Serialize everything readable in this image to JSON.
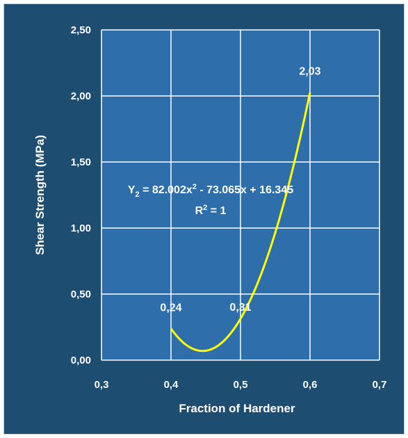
{
  "colors": {
    "background": "#1e4d72",
    "plot_area": "#2e6eaa",
    "grid": "#ffffff",
    "curve": "#ffff00",
    "text": "#ffffff"
  },
  "chart_data": {
    "type": "line",
    "title": "",
    "xlabel": "Fraction of Hardener",
    "ylabel": "Shear Strength (MPa)",
    "xlim": [
      0.3,
      0.7
    ],
    "ylim": [
      0.0,
      2.5
    ],
    "grid": true,
    "x_ticks": [
      "0,3",
      "0,4",
      "0,5",
      "0,6",
      "0,7"
    ],
    "y_ticks": [
      "0,00",
      "0,50",
      "1,00",
      "1,50",
      "2,00",
      "2,50"
    ],
    "fit": {
      "a": 82.002,
      "b": -73.065,
      "c": 16.345,
      "x_range": [
        0.4,
        0.6
      ],
      "equation_prefix": "Y",
      "equation_sub": "2",
      "equation_body_1": " = 82.002x",
      "equation_sup": "2",
      "equation_body_2": " - 73.065x + 16.345",
      "r2_prefix": "R",
      "r2_sup": "2",
      "r2_suffix": " = 1"
    },
    "points": [
      {
        "x": 0.4,
        "y": 0.24,
        "label": "0,24"
      },
      {
        "x": 0.5,
        "y": 0.31,
        "label": "0,31"
      },
      {
        "x": 0.6,
        "y": 2.03,
        "label": "2,03"
      }
    ]
  }
}
